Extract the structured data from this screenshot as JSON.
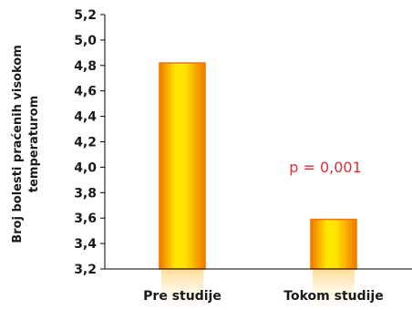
{
  "chart_data": {
    "type": "bar",
    "categories": [
      "Pre studije",
      "Tokom studije"
    ],
    "values": [
      4.82,
      3.59
    ],
    "ylabel_lines": [
      "Broj bolesti praćenih visokom",
      "temperaturom"
    ],
    "xlabel": "",
    "ylim": [
      3.2,
      5.2
    ],
    "yticks": [
      "3,2",
      "3,4",
      "3,6",
      "3,8",
      "4,0",
      "4,2",
      "4,4",
      "4,6",
      "4,8",
      "5,0",
      "5,2"
    ],
    "annotation": "p = 0,001",
    "grid": false,
    "legend": "none",
    "colors": {
      "bar_edge": "#f07800",
      "bar_center": "#ffe600",
      "bar_side": "#ffb000",
      "annotation": "#e0303a",
      "axis": "#000000"
    }
  }
}
